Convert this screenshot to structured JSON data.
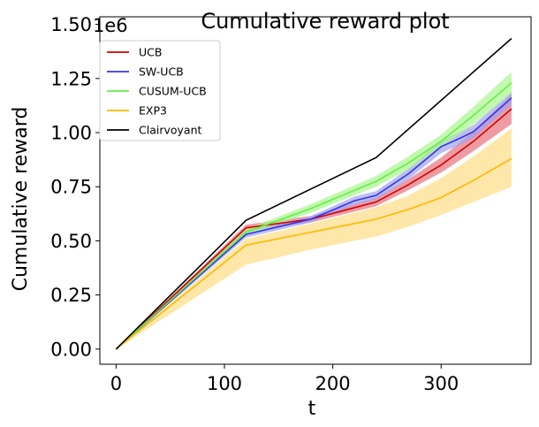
{
  "chart_data": {
    "type": "line",
    "title": "Cumulative reward plot",
    "xlabel": "t",
    "ylabel": "Cumulative reward",
    "y_offset_label": "1e6",
    "xlim": [
      -15,
      383
    ],
    "ylim": [
      -0.07,
      1.535
    ],
    "xticks": [
      0,
      100,
      200,
      300
    ],
    "xtick_labels": [
      "0",
      "100",
      "200",
      "300"
    ],
    "yticks": [
      0.0,
      0.25,
      0.5,
      0.75,
      1.0,
      1.25,
      1.5
    ],
    "ytick_labels": [
      "0.00",
      "0.25",
      "0.50",
      "0.75",
      "1.00",
      "1.25",
      "1.50"
    ],
    "grid": false,
    "legend_position": "top-left",
    "series": [
      {
        "name": "UCB",
        "color": "#d40000",
        "band_color": "#e8707a",
        "x": [
          0,
          120,
          180,
          240,
          270,
          300,
          330,
          365
        ],
        "y": [
          0,
          0.56,
          0.6,
          0.68,
          0.76,
          0.85,
          0.96,
          1.11
        ],
        "lower": [
          0,
          0.545,
          0.585,
          0.66,
          0.735,
          0.815,
          0.915,
          1.04
        ],
        "upper": [
          0,
          0.575,
          0.615,
          0.7,
          0.785,
          0.885,
          1.005,
          1.18
        ]
      },
      {
        "name": "SW-UCB",
        "color": "#3333ee",
        "band_color": "#9fa3f2",
        "x": [
          0,
          120,
          180,
          220,
          240,
          270,
          300,
          320,
          330,
          365
        ],
        "y": [
          0,
          0.53,
          0.6,
          0.685,
          0.71,
          0.81,
          0.935,
          0.98,
          1.005,
          1.16
        ],
        "lower": [
          0,
          0.515,
          0.585,
          0.665,
          0.69,
          0.785,
          0.905,
          0.95,
          0.975,
          1.13
        ],
        "upper": [
          0,
          0.545,
          0.615,
          0.705,
          0.73,
          0.835,
          0.965,
          1.01,
          1.035,
          1.19
        ]
      },
      {
        "name": "CUSUM-UCB",
        "color": "#66ee44",
        "band_color": "#a8f58f",
        "x": [
          0,
          120,
          180,
          240,
          270,
          300,
          330,
          365
        ],
        "y": [
          0,
          0.54,
          0.65,
          0.775,
          0.86,
          0.96,
          1.08,
          1.23
        ],
        "lower": [
          0,
          0.525,
          0.63,
          0.75,
          0.83,
          0.93,
          1.04,
          1.18
        ],
        "upper": [
          0,
          0.555,
          0.67,
          0.8,
          0.89,
          0.99,
          1.12,
          1.28
        ]
      },
      {
        "name": "EXP3",
        "color": "#ffb800",
        "band_color": "#ffdd85",
        "x": [
          0,
          120,
          180,
          240,
          270,
          300,
          330,
          365
        ],
        "y": [
          0,
          0.48,
          0.54,
          0.6,
          0.645,
          0.7,
          0.78,
          0.88
        ],
        "lower": [
          0,
          0.39,
          0.46,
          0.52,
          0.565,
          0.62,
          0.68,
          0.75
        ],
        "upper": [
          0,
          0.51,
          0.58,
          0.655,
          0.71,
          0.79,
          0.89,
          1.02
        ]
      },
      {
        "name": "Clairvoyant",
        "color": "#000000",
        "x": [
          0,
          120,
          240,
          365
        ],
        "y": [
          0,
          0.595,
          0.885,
          1.435
        ]
      }
    ]
  }
}
